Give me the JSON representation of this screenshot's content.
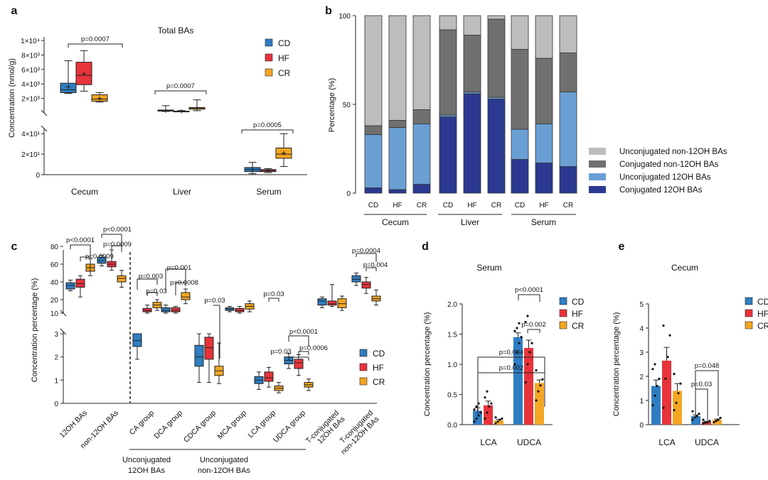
{
  "colors": {
    "CD": "#2F7DC1",
    "HF": "#E8333B",
    "CR": "#F4A623",
    "conj12": "#2B3990",
    "unconj12": "#6A9FD4",
    "conjnon": "#707070",
    "unconjnon": "#BDBDBD"
  },
  "chart_data": [
    {
      "id": "a",
      "panel": "a",
      "type": "box",
      "title": "Total BAs",
      "ylabel": "Concentration (nmol/g)",
      "categories": [
        "Cecum",
        "Liver",
        "Serum"
      ],
      "legend": [
        "CD",
        "HF",
        "CR"
      ],
      "upper_ticks": [
        "1×10⁴",
        "8×10³",
        "6×10³",
        "4×10³",
        "2×10³"
      ],
      "lower_ticks": [
        "4×10¹",
        "2×10¹",
        "0"
      ],
      "upper_range": [
        0,
        10000
      ],
      "lower_range": [
        0,
        45
      ],
      "boxes": [
        {
          "group": "Cecum",
          "series": "CD",
          "axis": "upper",
          "min": 2700,
          "q1": 2800,
          "median": 3200,
          "q3": 4100,
          "max": 7200,
          "mean": 3600
        },
        {
          "group": "Cecum",
          "series": "HF",
          "axis": "upper",
          "min": 3000,
          "q1": 3900,
          "median": 5200,
          "q3": 7000,
          "max": 8600,
          "mean": 5400
        },
        {
          "group": "Cecum",
          "series": "CR",
          "axis": "upper",
          "min": 1500,
          "q1": 1600,
          "median": 1900,
          "q3": 2500,
          "max": 2800,
          "mean": 2000
        },
        {
          "group": "Liver",
          "series": "CD",
          "axis": "upper",
          "min": 200,
          "q1": 250,
          "median": 300,
          "q3": 400,
          "max": 1000,
          "mean": 320
        },
        {
          "group": "Liver",
          "series": "HF",
          "axis": "upper",
          "min": 150,
          "q1": 180,
          "median": 210,
          "q3": 240,
          "max": 320,
          "mean": 215
        },
        {
          "group": "Liver",
          "series": "CR",
          "axis": "upper",
          "min": 300,
          "q1": 500,
          "median": 650,
          "q3": 750,
          "max": 1800,
          "mean": 680
        },
        {
          "group": "Serum",
          "series": "CD",
          "axis": "lower",
          "min": 1,
          "q1": 3,
          "median": 5,
          "q3": 7,
          "max": 12,
          "mean": 5
        },
        {
          "group": "Serum",
          "series": "HF",
          "axis": "lower",
          "min": 2,
          "q1": 3,
          "median": 4,
          "q3": 5,
          "max": 6,
          "mean": 4
        },
        {
          "group": "Serum",
          "series": "CR",
          "axis": "lower",
          "min": 8,
          "q1": 16,
          "median": 20,
          "q3": 26,
          "max": 40,
          "mean": 21
        }
      ],
      "annotations": [
        {
          "group": "Cecum",
          "text": "p=0.0007"
        },
        {
          "group": "Liver",
          "text": "p=0.0007"
        },
        {
          "group": "Serum",
          "text": "p=0.0005"
        }
      ]
    },
    {
      "id": "b",
      "panel": "b",
      "type": "stacked_bar",
      "ylabel": "Percentage (%)",
      "ylim": [
        0,
        100
      ],
      "yticks": [
        "0",
        "50",
        "100"
      ],
      "bars": [
        "CD",
        "HF",
        "CR",
        "CD",
        "HF",
        "CR",
        "CD",
        "HF",
        "CR"
      ],
      "groups": [
        "Cecum",
        "Liver",
        "Serum"
      ],
      "series": [
        {
          "name": "Conjugated 12OH BAs",
          "values": [
            3,
            2,
            5,
            43,
            56,
            53,
            19,
            17,
            15
          ]
        },
        {
          "name": "Unconjugated 12OH BAs",
          "values": [
            30,
            35,
            34,
            1,
            1,
            1,
            17,
            22,
            42
          ]
        },
        {
          "name": "Conjugated non-12OH BAs",
          "values": [
            5,
            4,
            8,
            48,
            32,
            44,
            45,
            37,
            22
          ]
        },
        {
          "name": "Unconjugated non-12OH BAs",
          "values": [
            62,
            59,
            53,
            8,
            11,
            2,
            19,
            24,
            21
          ]
        }
      ],
      "legend_order": [
        "Unconjugated non-12OH BAs",
        "Conjugated non-12OH BAs",
        "Unconjugated 12OH BAs",
        "Conjugated 12OH BAs"
      ]
    },
    {
      "id": "c",
      "panel": "c",
      "type": "box",
      "ylabel": "Concentration percentage (%)",
      "upper_ticks": [
        "80",
        "60",
        "40",
        "20",
        "10"
      ],
      "lower_ticks": [
        "3",
        "2",
        "1",
        "0"
      ],
      "upper_range": [
        10,
        80
      ],
      "lower_range": [
        0,
        3
      ],
      "categories": [
        "12OH BAs",
        "non-12OH BAs",
        "CA group",
        "DCA group",
        "CDCA group",
        "MCA group",
        "LCA group",
        "UDCA group",
        "T-conjugated 12OH BAs",
        "T-conjugated non-12OH BAs"
      ],
      "category_lines": [
        [
          "12OH BAs"
        ],
        [
          "non-12OH BAs"
        ],
        [
          "CA group"
        ],
        [
          "DCA group"
        ],
        [
          "CDCA group"
        ],
        [
          "MCA group"
        ],
        [
          "LCA group"
        ],
        [
          "UDCA group"
        ],
        [
          "T-conjugated",
          "12OH BAs"
        ],
        [
          "T-conjugated",
          "non-12OH BAs"
        ]
      ],
      "group_labels": [
        [
          "Unconjugated",
          "12OH BAs"
        ],
        [
          "Unconjugated",
          "non-12OH BAs"
        ]
      ],
      "legend": [
        "CD",
        "HF",
        "CR"
      ],
      "boxes": [
        {
          "cat": 0,
          "series": "CD",
          "axis": "upper",
          "min": 30,
          "q1": 32,
          "median": 36,
          "q3": 39,
          "max": 42
        },
        {
          "cat": 0,
          "series": "HF",
          "axis": "upper",
          "min": 23,
          "q1": 34,
          "median": 38,
          "q3": 43,
          "max": 47
        },
        {
          "cat": 0,
          "series": "CR",
          "axis": "upper",
          "min": 47,
          "q1": 52,
          "median": 56,
          "q3": 60,
          "max": 66
        },
        {
          "cat": 1,
          "series": "CD",
          "axis": "upper",
          "min": 58,
          "q1": 61,
          "median": 64,
          "q3": 68,
          "max": 70
        },
        {
          "cat": 1,
          "series": "HF",
          "axis": "upper",
          "min": 53,
          "q1": 57,
          "median": 60,
          "q3": 63,
          "max": 76
        },
        {
          "cat": 1,
          "series": "CR",
          "axis": "upper",
          "min": 34,
          "q1": 40,
          "median": 44,
          "q3": 47,
          "max": 53
        },
        {
          "cat": 2,
          "series": "CD",
          "axis": "lower",
          "min": 1.9,
          "q1": 2.45,
          "median": 2.7,
          "q3": 3.0,
          "max": 3.0
        },
        {
          "cat": 2,
          "series": "HF",
          "axis": "upper",
          "min": 10,
          "q1": 11,
          "median": 12,
          "q3": 13.5,
          "max": 16
        },
        {
          "cat": 2,
          "series": "CR",
          "axis": "upper",
          "min": 12,
          "q1": 14,
          "median": 16,
          "q3": 18,
          "max": 20
        },
        {
          "cat": 3,
          "series": "CD",
          "axis": "upper",
          "min": 10,
          "q1": 11,
          "median": 12,
          "q3": 14,
          "max": 16
        },
        {
          "cat": 3,
          "series": "HF",
          "axis": "upper",
          "min": 10,
          "q1": 11,
          "median": 12,
          "q3": 14,
          "max": 15
        },
        {
          "cat": 3,
          "series": "CR",
          "axis": "upper",
          "min": 17,
          "q1": 20,
          "median": 23,
          "q3": 28,
          "max": 32
        },
        {
          "cat": 4,
          "series": "CD",
          "axis": "lower",
          "min": 0.9,
          "q1": 1.6,
          "median": 2.0,
          "q3": 2.5,
          "max": 3.0
        },
        {
          "cat": 4,
          "series": "HF",
          "axis": "lower",
          "min": 0.9,
          "q1": 1.9,
          "median": 2.4,
          "q3": 2.85,
          "max": 3.0
        },
        {
          "cat": 4,
          "series": "CR",
          "axis": "lower",
          "min": 0.85,
          "q1": 1.2,
          "median": 1.4,
          "q3": 1.6,
          "max": 2.6
        },
        {
          "cat": 5,
          "series": "CD",
          "axis": "upper",
          "min": 11,
          "q1": 12,
          "median": 13,
          "q3": 14,
          "max": 15
        },
        {
          "cat": 5,
          "series": "HF",
          "axis": "upper",
          "min": 10,
          "q1": 11,
          "median": 12,
          "q3": 13.5,
          "max": 15
        },
        {
          "cat": 5,
          "series": "CR",
          "axis": "upper",
          "min": 11,
          "q1": 13,
          "median": 15,
          "q3": 17,
          "max": 19
        },
        {
          "cat": 6,
          "series": "CD",
          "axis": "lower",
          "min": 0.6,
          "q1": 0.85,
          "median": 1.0,
          "q3": 1.15,
          "max": 1.35
        },
        {
          "cat": 6,
          "series": "HF",
          "axis": "lower",
          "min": 0.7,
          "q1": 0.95,
          "median": 1.1,
          "q3": 1.35,
          "max": 1.55
        },
        {
          "cat": 6,
          "series": "CR",
          "axis": "lower",
          "min": 0.45,
          "q1": 0.55,
          "median": 0.65,
          "q3": 0.75,
          "max": 0.9
        },
        {
          "cat": 7,
          "series": "CD",
          "axis": "lower",
          "min": 1.5,
          "q1": 1.7,
          "median": 1.85,
          "q3": 2.0,
          "max": 2.15
        },
        {
          "cat": 7,
          "series": "HF",
          "axis": "lower",
          "min": 1.2,
          "q1": 1.5,
          "median": 1.75,
          "q3": 1.9,
          "max": 2.1
        },
        {
          "cat": 7,
          "series": "CR",
          "axis": "lower",
          "min": 0.55,
          "q1": 0.7,
          "median": 0.8,
          "q3": 0.9,
          "max": 1.05
        },
        {
          "cat": 8,
          "series": "CD",
          "axis": "upper",
          "min": 14,
          "q1": 16,
          "median": 19,
          "q3": 21,
          "max": 23
        },
        {
          "cat": 8,
          "series": "HF",
          "axis": "upper",
          "min": 15,
          "q1": 16,
          "median": 17,
          "q3": 19,
          "max": 37
        },
        {
          "cat": 8,
          "series": "CR",
          "axis": "upper",
          "min": 12,
          "q1": 14,
          "median": 17,
          "q3": 21,
          "max": 24
        },
        {
          "cat": 9,
          "series": "CD",
          "axis": "upper",
          "min": 36,
          "q1": 40,
          "median": 43,
          "q3": 47,
          "max": 50
        },
        {
          "cat": 9,
          "series": "HF",
          "axis": "upper",
          "min": 27,
          "q1": 33,
          "median": 37,
          "q3": 40,
          "max": 45
        },
        {
          "cat": 9,
          "series": "CR",
          "axis": "upper",
          "min": 16,
          "q1": 19,
          "median": 21,
          "q3": 24,
          "max": 31
        }
      ],
      "annotations": [
        {
          "text": "p<0.0001"
        },
        {
          "text": "p=0.0009"
        },
        {
          "text": "p<0.0001"
        },
        {
          "text": "p=0.0009"
        },
        {
          "text": "p=0.003"
        },
        {
          "text": "p=0.03"
        },
        {
          "text": "p=0.001"
        },
        {
          "text": "p=0.0008"
        },
        {
          "text": "p=0.03"
        },
        {
          "text": "p=0.03"
        },
        {
          "text": "p=0.03"
        },
        {
          "text": "p<0.0001"
        },
        {
          "text": "p=0.0006"
        },
        {
          "text": "p=0.0004"
        },
        {
          "text": "p=0.004"
        }
      ]
    },
    {
      "id": "d",
      "panel": "d",
      "type": "bar",
      "title": "Serum",
      "ylabel": "Concentration percentage (%)",
      "ylim": [
        0,
        2.0
      ],
      "yticks": [
        "0.0",
        "0.5",
        "1.0",
        "1.5",
        "2.0"
      ],
      "categories": [
        "LCA",
        "UDCA"
      ],
      "legend": [
        "CD",
        "HF",
        "CR"
      ],
      "series": [
        {
          "name": "CD",
          "values": [
            0.23,
            1.45
          ],
          "errors": [
            0.05,
            0.07
          ],
          "points": [
            [
              0.05,
              0.1,
              0.15,
              0.2,
              0.25,
              0.3,
              0.35
            ],
            [
              1.0,
              1.2,
              1.35,
              1.45,
              1.55,
              1.6,
              1.68
            ]
          ]
        },
        {
          "name": "HF",
          "values": [
            0.32,
            1.27
          ],
          "errors": [
            0.07,
            0.13
          ],
          "points": [
            [
              0.1,
              0.2,
              0.3,
              0.35,
              0.45,
              0.55
            ],
            [
              0.7,
              1.0,
              1.2,
              1.35,
              1.7,
              1.8
            ]
          ]
        },
        {
          "name": "CR",
          "values": [
            0.07,
            0.69
          ],
          "errors": [
            0.02,
            0.05
          ],
          "points": [
            [
              0.02,
              0.05,
              0.08,
              0.1,
              0.12
            ],
            [
              0.4,
              0.55,
              0.65,
              0.75,
              0.9
            ]
          ]
        }
      ],
      "annotations": [
        {
          "text": "p=0.004"
        },
        {
          "text": "p=0.002"
        },
        {
          "text": "p<0.0001"
        },
        {
          "text": "p=0.002"
        }
      ]
    },
    {
      "id": "e",
      "panel": "e",
      "type": "bar",
      "title": "Cecum",
      "ylabel": "Concentration percentage (%)",
      "ylim": [
        0,
        5
      ],
      "yticks": [
        "0",
        "1",
        "2",
        "3",
        "4",
        "5"
      ],
      "categories": [
        "LCA",
        "UDCA"
      ],
      "legend": [
        "CD",
        "HF",
        "CR"
      ],
      "series": [
        {
          "name": "CD",
          "values": [
            1.6,
            0.35
          ],
          "errors": [
            0.25,
            0.05
          ],
          "points": [
            [
              0.8,
              1.2,
              1.6,
              1.9,
              2.3,
              2.5
            ],
            [
              0.2,
              0.3,
              0.35,
              0.45,
              0.55
            ]
          ]
        },
        {
          "name": "HF",
          "values": [
            2.65,
            0.12
          ],
          "errors": [
            0.55,
            0.02
          ],
          "points": [
            [
              0.7,
              1.9,
              2.8,
              3.7,
              4.1
            ],
            [
              0.05,
              0.08,
              0.1,
              0.15,
              0.2
            ]
          ]
        },
        {
          "name": "CR",
          "values": [
            1.4,
            0.2
          ],
          "errors": [
            0.3,
            0.03
          ],
          "points": [
            [
              0.6,
              0.9,
              1.3,
              1.7,
              2.1
            ],
            [
              0.1,
              0.15,
              0.2,
              0.28
            ]
          ]
        }
      ],
      "annotations": [
        {
          "text": "p=0.048"
        },
        {
          "text": "p=0.03"
        }
      ]
    }
  ]
}
